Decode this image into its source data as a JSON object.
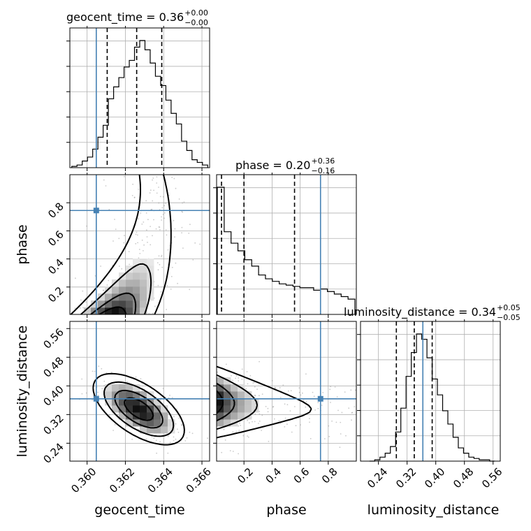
{
  "chart_data": {
    "type": "corner",
    "parameters": [
      "geocent_time",
      "phase",
      "luminosity_distance"
    ],
    "titles": [
      {
        "text": "geocent_time = 0.36",
        "sup": "+0.00",
        "sub": "−0.00"
      },
      {
        "text": "phase = 0.20",
        "sup": "+0.36",
        "sub": "−0.16"
      },
      {
        "text": "luminosity_distance = 0.34",
        "sup": "+0.05",
        "sub": "−0.05"
      }
    ],
    "axis_labels": {
      "x": [
        "geocent_time",
        "phase",
        "luminosity_distance"
      ],
      "y": [
        "phase",
        "luminosity_distance"
      ]
    },
    "ranges": {
      "geocent_time": [
        0.3591,
        0.3664
      ],
      "phase": [
        0.005,
        1.0
      ],
      "luminosity_distance": [
        0.19,
        0.58
      ]
    },
    "ticks": {
      "geocent_time": [
        0.36,
        0.362,
        0.364,
        0.366
      ],
      "geocent_time_labels": [
        "0.360",
        "0.362",
        "0.364",
        "0.366"
      ],
      "phase": [
        0.2,
        0.4,
        0.6,
        0.8
      ],
      "phase_labels": [
        "0.2",
        "0.4",
        "0.6",
        "0.8"
      ],
      "luminosity_distance": [
        0.24,
        0.32,
        0.4,
        0.48,
        0.56
      ],
      "luminosity_distance_labels": [
        "0.24",
        "0.32",
        "0.40",
        "0.48",
        "0.56"
      ]
    },
    "truths": {
      "geocent_time": 0.36048,
      "phase": 0.745,
      "luminosity_distance": 0.364
    },
    "quantiles": {
      "geocent_time": [
        0.36105,
        0.36259,
        0.3639
      ],
      "phase": [
        0.04,
        0.2,
        0.56
      ],
      "luminosity_distance": [
        0.29,
        0.34,
        0.39
      ]
    },
    "histograms": {
      "geocent_time": [
        1,
        2,
        5,
        8,
        14,
        23,
        32,
        52,
        61,
        68,
        76,
        81,
        91,
        96,
        89,
        79,
        69,
        62,
        51,
        41,
        33,
        20,
        13,
        6,
        4,
        2
      ],
      "phase": [
        100,
        65,
        56,
        50,
        43,
        38,
        31,
        28,
        26,
        24,
        23,
        22,
        21,
        21,
        19,
        20,
        18,
        16,
        14,
        12
      ],
      "luminosity_distance": [
        0,
        1,
        3,
        6,
        11,
        22,
        40,
        64,
        82,
        96,
        92,
        78,
        62,
        50,
        38,
        28,
        18,
        10,
        6,
        3,
        2,
        1,
        1,
        0
      ]
    },
    "grid": true
  }
}
